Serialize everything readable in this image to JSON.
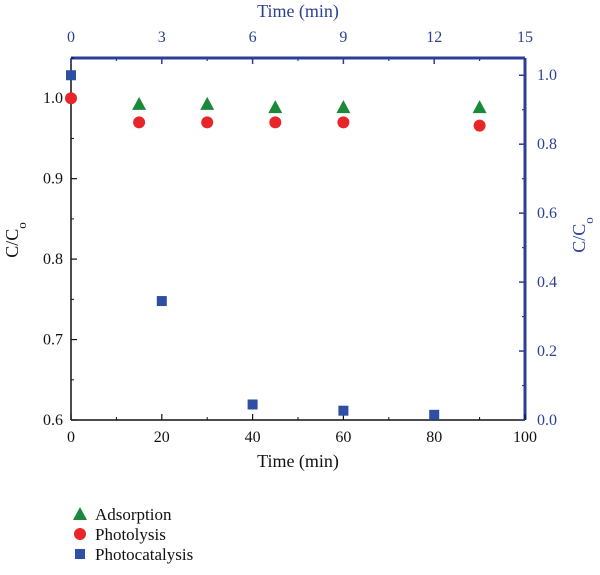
{
  "chart_data": {
    "type": "scatter",
    "title": "",
    "colors": {
      "blue_axis": "#2b3f95",
      "black_axis": "#111111"
    },
    "axes": {
      "bottom": {
        "label": "Time (min)",
        "range": [
          0,
          100
        ],
        "ticks": [
          0,
          20,
          40,
          60,
          80,
          100
        ]
      },
      "top": {
        "label": "Time (min)",
        "range": [
          0,
          15
        ],
        "ticks": [
          0,
          3,
          6,
          9,
          12,
          15
        ]
      },
      "left": {
        "label_main": "C/C",
        "label_sub": "o",
        "range": [
          0.6,
          1.05
        ],
        "ticks": [
          0.6,
          0.7,
          0.8,
          0.9,
          1.0
        ]
      },
      "right": {
        "label_main": "C/C",
        "label_sub": "o",
        "range": [
          0,
          1.05
        ],
        "ticks": [
          0.0,
          0.2,
          0.4,
          0.6,
          0.8,
          1.0
        ]
      }
    },
    "series": [
      {
        "name": "Adsorption",
        "marker": "triangle",
        "color": "#1a8a3a",
        "axis_x": "bottom",
        "axis_y": "left",
        "x": [
          15,
          30,
          45,
          60,
          90
        ],
        "y": [
          0.993,
          0.993,
          0.989,
          0.989,
          0.989
        ]
      },
      {
        "name": "Photolysis",
        "marker": "circle",
        "color": "#e8262a",
        "axis_x": "bottom",
        "axis_y": "left",
        "x": [
          0,
          15,
          30,
          45,
          60,
          90
        ],
        "y": [
          1.0,
          0.97,
          0.97,
          0.97,
          0.97,
          0.966
        ]
      },
      {
        "name": "Photocatalysis",
        "marker": "square",
        "color": "#2f4fa5",
        "axis_x": "top",
        "axis_y": "right",
        "x": [
          0,
          3,
          6,
          9,
          12
        ],
        "y": [
          1.0,
          0.345,
          0.045,
          0.027,
          0.015
        ]
      }
    ],
    "legend_position": "bottom-left"
  }
}
